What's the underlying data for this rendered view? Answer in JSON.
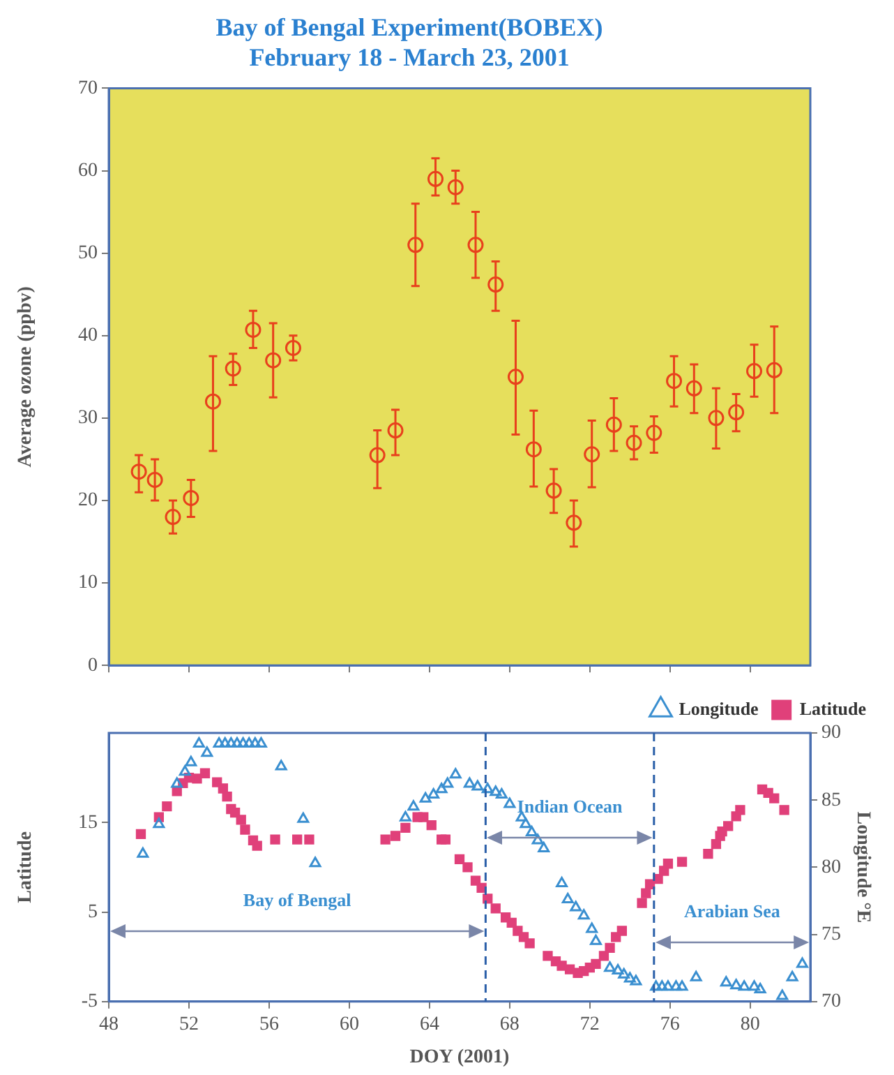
{
  "chart_data": [
    {
      "type": "scatter",
      "title": "Bay of Bengal Experiment(BOBEX)",
      "subtitle": "February 18 - March 23, 2001",
      "ylabel": "Average ozone (ppbv)",
      "series": [
        {
          "color": "#e8401c",
          "marker": "circle",
          "x": [
            49.5,
            50.3,
            51.2,
            52.1,
            53.2,
            54.2,
            55.2,
            56.2,
            57.2,
            61.4,
            62.3,
            63.3,
            64.3,
            65.3,
            66.3,
            67.3,
            68.3,
            69.2,
            70.2,
            71.2,
            72.1,
            73.2,
            74.2,
            75.2,
            76.2,
            77.2,
            78.3,
            79.3,
            80.2,
            81.2
          ],
          "values": [
            23.5,
            22.5,
            18,
            20.3,
            32,
            36,
            40.7,
            37,
            38.5,
            25.5,
            28.5,
            51,
            59,
            58,
            51,
            46.2,
            35,
            26.2,
            21.2,
            17.3,
            25.6,
            29.2,
            27,
            28.2,
            34.5,
            33.6,
            30,
            30.7,
            35.7,
            35.8
          ],
          "errors": [
            [
              21,
              25.5
            ],
            [
              20,
              25
            ],
            [
              16,
              20
            ],
            [
              18,
              22.5
            ],
            [
              26,
              37.5
            ],
            [
              34,
              37.8
            ],
            [
              38.5,
              43
            ],
            [
              32.5,
              41.5
            ],
            [
              37,
              40
            ],
            [
              21.5,
              28.5
            ],
            [
              25.5,
              31
            ],
            [
              46,
              56
            ],
            [
              57,
              61.5
            ],
            [
              56,
              60
            ],
            [
              47,
              55
            ],
            [
              43,
              49
            ],
            [
              28,
              41.8
            ],
            [
              21.7,
              30.9
            ],
            [
              18.5,
              23.8
            ],
            [
              14.4,
              20
            ],
            [
              21.6,
              29.7
            ],
            [
              26,
              32.4
            ],
            [
              25,
              29
            ],
            [
              25.8,
              30.2
            ],
            [
              31.4,
              37.5
            ],
            [
              30.6,
              36.5
            ],
            [
              26.3,
              33.6
            ],
            [
              28.4,
              32.9
            ],
            [
              32.6,
              38.9
            ],
            [
              30.6,
              41.1
            ]
          ]
        }
      ],
      "xlim": [
        48,
        83
      ],
      "xticks": [
        48,
        52,
        56,
        60,
        64,
        68,
        72,
        76,
        80
      ],
      "ylim": [
        0,
        70
      ],
      "yticks": [
        0,
        10,
        20,
        30,
        40,
        50,
        60,
        70
      ],
      "tick_labels": "y",
      "legend": false,
      "grid": false
    },
    {
      "type": "scatter",
      "xlabel": "DOY (2001)",
      "ylabel": "Latitude",
      "y2label": "Longitude °E",
      "series": [
        {
          "name": "Longitude",
          "color": "#3a8fd0",
          "marker": "triangle",
          "axis": "y2",
          "x": [
            49.7,
            50.5,
            51.4,
            51.8,
            52.1,
            52.5,
            52.9,
            53.5,
            53.8,
            54.1,
            54.4,
            54.7,
            55.0,
            55.3,
            55.6,
            56.6,
            57.7,
            58.3,
            62.8,
            63.2,
            63.8,
            64.2,
            64.6,
            64.9,
            65.3,
            66.0,
            66.4,
            66.9,
            67.3,
            67.6,
            68.0,
            68.6,
            68.8,
            69.1,
            69.4,
            69.7,
            70.6,
            70.9,
            71.3,
            71.7,
            72.1,
            72.3,
            73.0,
            73.4,
            73.7,
            74.0,
            74.3,
            75.3,
            75.6,
            75.9,
            76.3,
            76.6,
            77.3,
            78.8,
            79.3,
            79.7,
            80.2,
            80.5,
            81.6,
            82.1,
            82.6
          ],
          "values": [
            81.0,
            83.2,
            86.2,
            87.1,
            87.8,
            89.2,
            88.5,
            89.2,
            89.2,
            89.2,
            89.2,
            89.2,
            89.2,
            89.2,
            89.2,
            87.5,
            83.6,
            80.3,
            83.7,
            84.5,
            85.1,
            85.4,
            85.8,
            86.2,
            86.9,
            86.2,
            86.0,
            85.8,
            85.6,
            85.4,
            84.7,
            83.7,
            83.2,
            82.6,
            82.0,
            81.4,
            78.8,
            77.6,
            77.0,
            76.4,
            75.4,
            74.5,
            72.5,
            72.3,
            72.0,
            71.7,
            71.5,
            71.1,
            71.1,
            71.1,
            71.1,
            71.1,
            71.8,
            71.4,
            71.2,
            71.1,
            71.1,
            70.9,
            70.4,
            71.8,
            72.8
          ]
        },
        {
          "name": "Latitude",
          "color": "#e0407a",
          "marker": "square",
          "x": [
            49.6,
            50.5,
            50.9,
            51.4,
            51.7,
            52.0,
            52.4,
            52.8,
            53.4,
            53.7,
            53.9,
            54.1,
            54.3,
            54.6,
            54.8,
            55.2,
            55.4,
            56.3,
            57.4,
            58.0,
            61.8,
            62.3,
            62.8,
            63.4,
            63.7,
            64.1,
            64.6,
            64.8,
            65.5,
            65.9,
            66.3,
            66.6,
            66.9,
            67.3,
            67.8,
            68.1,
            68.4,
            68.7,
            69.0,
            69.9,
            70.3,
            70.6,
            71.0,
            71.4,
            71.7,
            72.0,
            72.3,
            72.7,
            73.0,
            73.3,
            73.6,
            74.6,
            74.8,
            75.0,
            75.4,
            75.7,
            75.9,
            76.6,
            77.9,
            78.3,
            78.5,
            78.6,
            78.9,
            79.3,
            79.5,
            80.6,
            80.9,
            81.2,
            81.7
          ],
          "values": [
            13.7,
            15.6,
            16.8,
            18.5,
            19.4,
            20.0,
            19.9,
            20.5,
            19.5,
            18.8,
            17.9,
            16.5,
            16.1,
            15.3,
            14.2,
            13.0,
            12.4,
            13.1,
            13.1,
            13.1,
            13.1,
            13.5,
            14.4,
            15.6,
            15.6,
            14.7,
            13.1,
            13.1,
            10.9,
            10.0,
            8.5,
            7.7,
            6.5,
            5.4,
            4.4,
            3.8,
            2.9,
            2.2,
            1.5,
            0.1,
            -0.5,
            -1.0,
            -1.4,
            -1.8,
            -1.6,
            -1.2,
            -0.8,
            0.1,
            1.0,
            2.2,
            2.9,
            6.0,
            7.1,
            8.1,
            8.7,
            9.6,
            10.4,
            10.6,
            11.5,
            12.6,
            13.5,
            14.0,
            14.6,
            15.7,
            16.4,
            18.7,
            18.3,
            17.7,
            16.4
          ]
        }
      ],
      "xlim": [
        48,
        83
      ],
      "xticks": [
        48,
        52,
        56,
        60,
        64,
        68,
        72,
        76,
        80
      ],
      "ylim": [
        -5,
        25
      ],
      "yticks": [
        -5,
        5,
        15
      ],
      "y2lim": [
        70,
        90
      ],
      "y2ticks": [
        70,
        75,
        80,
        85,
        90
      ],
      "ref_lines": [
        {
          "axis": "x",
          "value": 66.8,
          "color": "#2a5fa8",
          "line_style": "dashed"
        },
        {
          "axis": "x",
          "value": 75.2,
          "color": "#2a5fa8",
          "line_style": "dashed"
        }
      ],
      "annotations": [
        "Bay of Bengal",
        "Indian Ocean",
        "Arabian Sea"
      ],
      "legend": "top right",
      "grid": false
    }
  ]
}
